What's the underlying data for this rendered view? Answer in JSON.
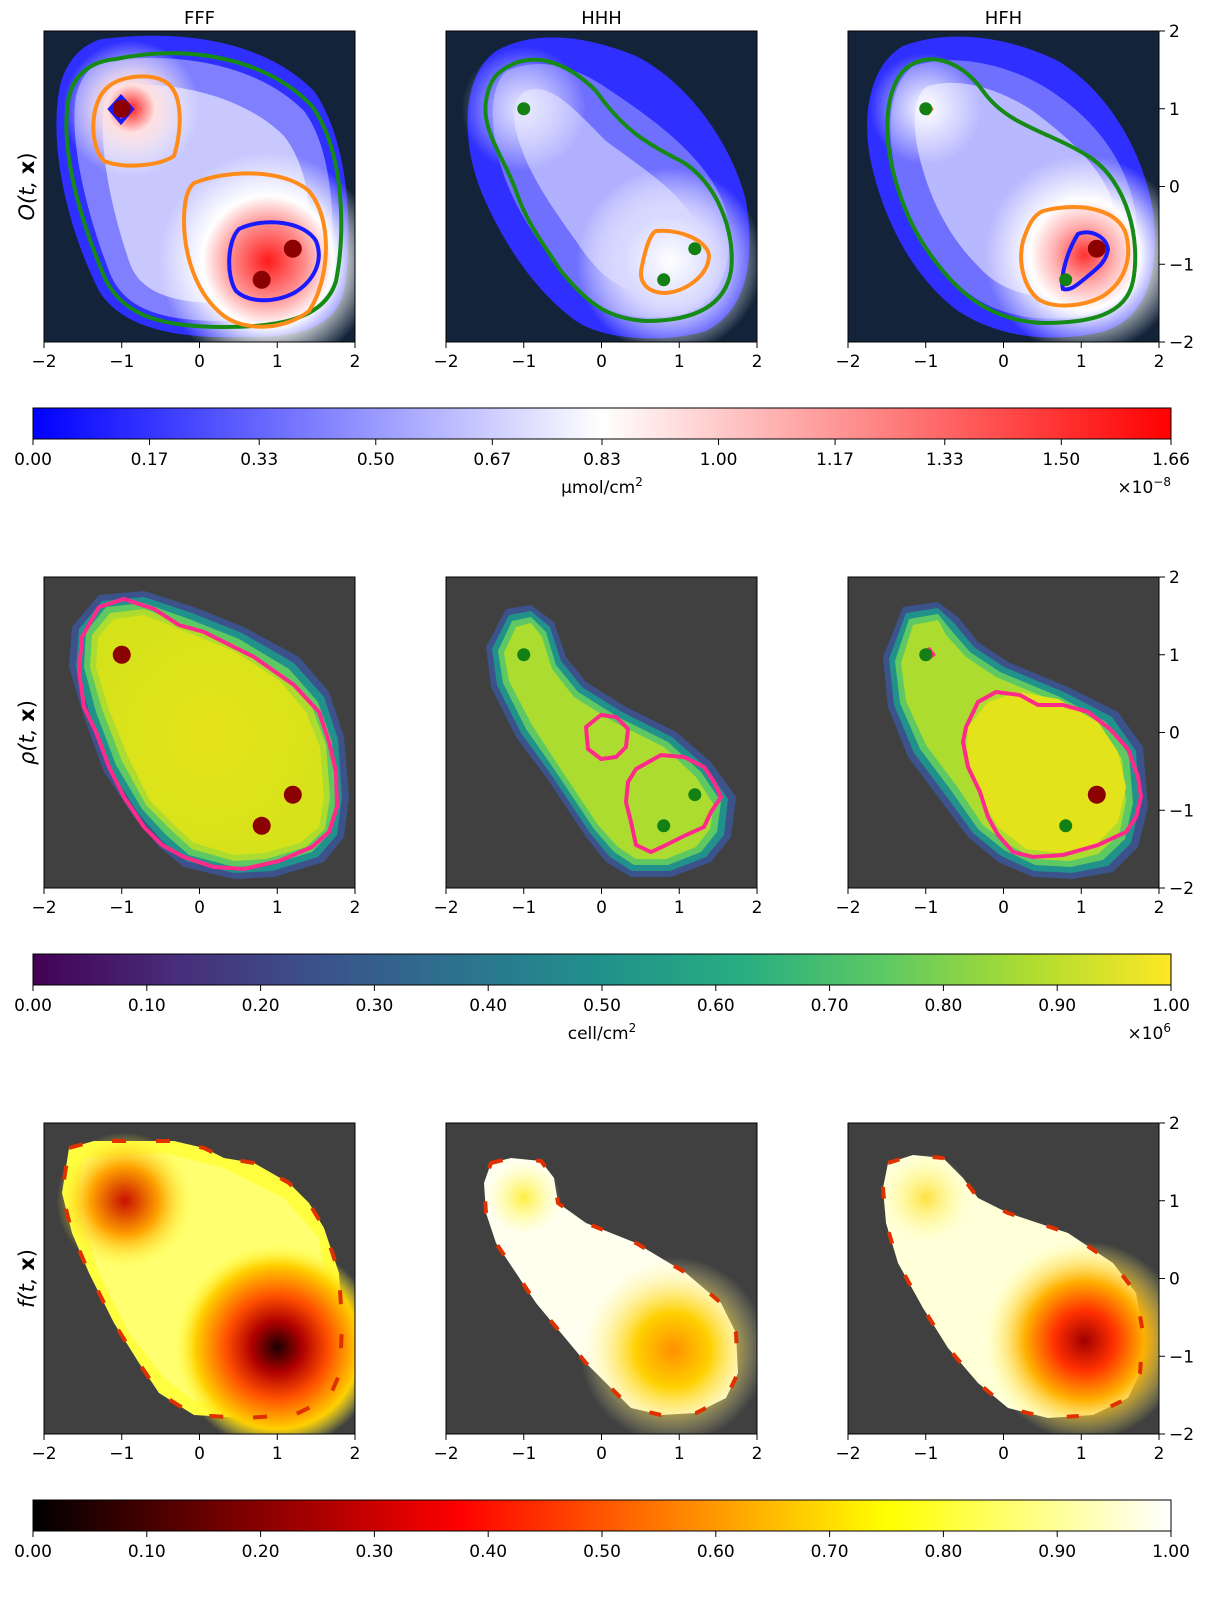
{
  "chart_data": {
    "type": "heatmap",
    "columns": [
      "FFF",
      "HHH",
      "HFH"
    ],
    "rows": [
      {
        "ylabel_main": "O",
        "ylabel_args": "(t, ",
        "ylabel_bold": "x",
        "ylabel_close": ")",
        "colormap": "bwr",
        "colorbar": {
          "ticks": [
            "0.00",
            "0.17",
            "0.33",
            "0.50",
            "0.67",
            "0.83",
            "1.00",
            "1.17",
            "1.33",
            "1.50",
            "1.66"
          ],
          "label": "μmol/cm",
          "label_sup": "2",
          "scale_base": "×10",
          "scale_exp": "−8",
          "range": [
            0,
            1.66
          ]
        },
        "contour_colors": [
          "#ff8c1a",
          "#1a1aff",
          "#158a15"
        ],
        "panels": [
          {
            "markers": [
              {
                "x": -1,
                "y": 1,
                "c": "#8b0000",
                "big": true
              },
              {
                "x": 0.8,
                "y": -1.2,
                "c": "#8b0000",
                "big": true
              },
              {
                "x": 1.2,
                "y": -0.8,
                "c": "#8b0000",
                "big": true
              }
            ]
          },
          {
            "markers": [
              {
                "x": -1,
                "y": 1,
                "c": "#128012",
                "big": false
              },
              {
                "x": 0.8,
                "y": -1.2,
                "c": "#128012",
                "big": false
              },
              {
                "x": 1.2,
                "y": -0.8,
                "c": "#128012",
                "big": false
              }
            ]
          },
          {
            "markers": [
              {
                "x": -1,
                "y": 1,
                "c": "#128012",
                "big": false
              },
              {
                "x": 0.8,
                "y": -1.2,
                "c": "#128012",
                "big": false
              },
              {
                "x": 1.2,
                "y": -0.8,
                "c": "#8b0000",
                "big": true
              }
            ]
          }
        ]
      },
      {
        "ylabel_main": "ρ",
        "ylabel_args": "(t, ",
        "ylabel_bold": "x",
        "ylabel_close": ")",
        "colormap": "viridis",
        "colorbar": {
          "ticks": [
            "0.00",
            "0.10",
            "0.20",
            "0.30",
            "0.40",
            "0.50",
            "0.60",
            "0.70",
            "0.80",
            "0.90",
            "1.00"
          ],
          "label": "cell/cm",
          "label_sup": "2",
          "scale_base": "×10",
          "scale_exp": "6",
          "range": [
            0,
            1
          ]
        },
        "contour_colors": [
          "#ff2a8a"
        ],
        "panels": [
          {
            "markers": [
              {
                "x": -1,
                "y": 1,
                "c": "#8b0000",
                "big": true
              },
              {
                "x": 0.8,
                "y": -1.2,
                "c": "#8b0000",
                "big": true
              },
              {
                "x": 1.2,
                "y": -0.8,
                "c": "#8b0000",
                "big": true
              }
            ]
          },
          {
            "markers": [
              {
                "x": -1,
                "y": 1,
                "c": "#128012",
                "big": false
              },
              {
                "x": 0.8,
                "y": -1.2,
                "c": "#128012",
                "big": false
              },
              {
                "x": 1.2,
                "y": -0.8,
                "c": "#128012",
                "big": false
              }
            ]
          },
          {
            "markers": [
              {
                "x": -1,
                "y": 1,
                "c": "#128012",
                "big": false
              },
              {
                "x": 0.8,
                "y": -1.2,
                "c": "#128012",
                "big": false
              },
              {
                "x": 1.2,
                "y": -0.8,
                "c": "#8b0000",
                "big": true
              }
            ]
          }
        ]
      },
      {
        "ylabel_main": "f",
        "ylabel_args": "(t, ",
        "ylabel_bold": "x",
        "ylabel_close": ")",
        "colormap": "hot",
        "colorbar": {
          "ticks": [
            "0.00",
            "0.10",
            "0.20",
            "0.30",
            "0.40",
            "0.50",
            "0.60",
            "0.70",
            "0.80",
            "0.90",
            "1.00"
          ],
          "label": "",
          "label_sup": "",
          "scale_base": "",
          "scale_exp": "",
          "range": [
            0,
            1
          ]
        },
        "contour_colors": [],
        "panels": [
          {
            "markers": []
          },
          {
            "markers": []
          },
          {
            "markers": []
          }
        ]
      }
    ],
    "x_ticks": [
      "−2",
      "−1",
      "0",
      "1",
      "2"
    ],
    "y_ticks": [
      "−2",
      "−1",
      "0",
      "1",
      "2"
    ],
    "xlim": [
      -2,
      2
    ],
    "ylim": [
      -2,
      2
    ],
    "colors": {
      "background_o": "#13243a",
      "background_rho": "#404040",
      "background_f": "#404040"
    }
  }
}
